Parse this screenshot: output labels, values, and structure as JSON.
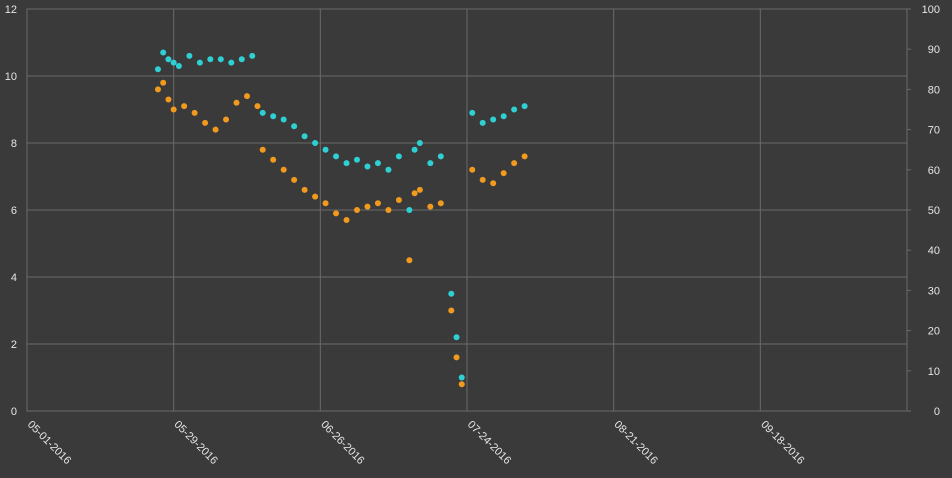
{
  "chart_data": {
    "type": "scatter",
    "title": "",
    "xlabel": "",
    "ylabel": "",
    "y2label": "",
    "grid": true,
    "legend": "none",
    "x_axis": {
      "type": "date",
      "range": [
        "2016-05-01",
        "2016-10-16"
      ],
      "tick_labels": [
        "05-01-2016",
        "05-29-2016",
        "06-26-2016",
        "07-24-2016",
        "08-21-2016",
        "09-18-2016"
      ]
    },
    "y_axis_left": {
      "range": [
        0,
        12
      ],
      "ticks": [
        0,
        2,
        4,
        6,
        8,
        10,
        12
      ]
    },
    "y_axis_right": {
      "range": [
        0,
        100
      ],
      "ticks": [
        0,
        10,
        20,
        30,
        40,
        50,
        60,
        70,
        80,
        90,
        100
      ]
    },
    "colors": {
      "background": "#3a3a3a",
      "grid": "#6a6a6a",
      "series_cyan": "#2fd0d4",
      "series_orange": "#f29a1e"
    },
    "series": [
      {
        "color": "#2fd0d4",
        "axis": "left",
        "points": [
          [
            "2016-05-26",
            10.2
          ],
          [
            "2016-05-27",
            10.7
          ],
          [
            "2016-05-28",
            10.5
          ],
          [
            "2016-05-29",
            10.4
          ],
          [
            "2016-05-30",
            10.3
          ],
          [
            "2016-06-01",
            10.6
          ],
          [
            "2016-06-03",
            10.4
          ],
          [
            "2016-06-05",
            10.5
          ],
          [
            "2016-06-07",
            10.5
          ],
          [
            "2016-06-09",
            10.4
          ],
          [
            "2016-06-11",
            10.5
          ],
          [
            "2016-06-13",
            10.6
          ],
          [
            "2016-06-15",
            8.9
          ],
          [
            "2016-06-17",
            8.8
          ],
          [
            "2016-06-19",
            8.7
          ],
          [
            "2016-06-21",
            8.5
          ],
          [
            "2016-06-23",
            8.2
          ],
          [
            "2016-06-25",
            8.0
          ],
          [
            "2016-06-27",
            7.8
          ],
          [
            "2016-06-29",
            7.6
          ],
          [
            "2016-07-01",
            7.4
          ],
          [
            "2016-07-03",
            7.5
          ],
          [
            "2016-07-05",
            7.3
          ],
          [
            "2016-07-07",
            7.4
          ],
          [
            "2016-07-09",
            7.2
          ],
          [
            "2016-07-11",
            7.6
          ],
          [
            "2016-07-13",
            6.0
          ],
          [
            "2016-07-14",
            7.8
          ],
          [
            "2016-07-15",
            8.0
          ],
          [
            "2016-07-17",
            7.4
          ],
          [
            "2016-07-19",
            7.6
          ],
          [
            "2016-07-21",
            3.5
          ],
          [
            "2016-07-22",
            2.2
          ],
          [
            "2016-07-23",
            1.0
          ],
          [
            "2016-07-25",
            8.9
          ],
          [
            "2016-07-27",
            8.6
          ],
          [
            "2016-07-29",
            8.7
          ],
          [
            "2016-07-31",
            8.8
          ],
          [
            "2016-08-02",
            9.0
          ],
          [
            "2016-08-04",
            9.1
          ]
        ]
      },
      {
        "color": "#f29a1e",
        "axis": "left",
        "points": [
          [
            "2016-05-26",
            9.6
          ],
          [
            "2016-05-27",
            9.8
          ],
          [
            "2016-05-28",
            9.3
          ],
          [
            "2016-05-29",
            9.0
          ],
          [
            "2016-05-31",
            9.1
          ],
          [
            "2016-06-02",
            8.9
          ],
          [
            "2016-06-04",
            8.6
          ],
          [
            "2016-06-06",
            8.4
          ],
          [
            "2016-06-08",
            8.7
          ],
          [
            "2016-06-10",
            9.2
          ],
          [
            "2016-06-12",
            9.4
          ],
          [
            "2016-06-14",
            9.1
          ],
          [
            "2016-06-15",
            7.8
          ],
          [
            "2016-06-17",
            7.5
          ],
          [
            "2016-06-19",
            7.2
          ],
          [
            "2016-06-21",
            6.9
          ],
          [
            "2016-06-23",
            6.6
          ],
          [
            "2016-06-25",
            6.4
          ],
          [
            "2016-06-27",
            6.2
          ],
          [
            "2016-06-29",
            5.9
          ],
          [
            "2016-07-01",
            5.7
          ],
          [
            "2016-07-03",
            6.0
          ],
          [
            "2016-07-05",
            6.1
          ],
          [
            "2016-07-07",
            6.2
          ],
          [
            "2016-07-09",
            6.0
          ],
          [
            "2016-07-11",
            6.3
          ],
          [
            "2016-07-13",
            4.5
          ],
          [
            "2016-07-14",
            6.5
          ],
          [
            "2016-07-15",
            6.6
          ],
          [
            "2016-07-17",
            6.1
          ],
          [
            "2016-07-19",
            6.2
          ],
          [
            "2016-07-21",
            3.0
          ],
          [
            "2016-07-22",
            1.6
          ],
          [
            "2016-07-23",
            0.8
          ],
          [
            "2016-07-25",
            7.2
          ],
          [
            "2016-07-27",
            6.9
          ],
          [
            "2016-07-29",
            6.8
          ],
          [
            "2016-07-31",
            7.1
          ],
          [
            "2016-08-02",
            7.4
          ],
          [
            "2016-08-04",
            7.6
          ]
        ]
      }
    ]
  }
}
